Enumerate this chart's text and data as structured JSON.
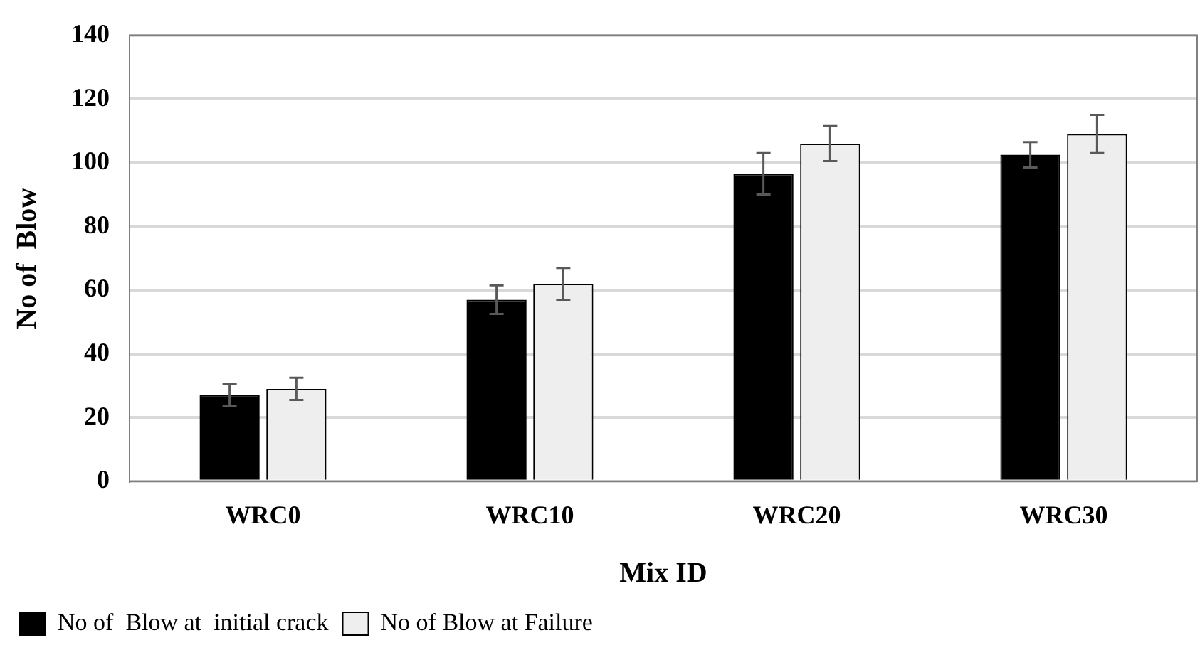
{
  "chart_data": {
    "type": "bar",
    "xlabel": "Mix ID",
    "ylabel": "No of  Blow",
    "categories": [
      "WRC0",
      "WRC10",
      "WRC20",
      "WRC30"
    ],
    "series": [
      {
        "name": "No of  Blow at  initial crack",
        "color": "#000000",
        "values": [
          27,
          57,
          96.5,
          102.5
        ],
        "errors": [
          3.5,
          4.5,
          6.5,
          4
        ]
      },
      {
        "name": "No of Blow at Failure",
        "color": "#eeeeee",
        "values": [
          29,
          62,
          106,
          109
        ],
        "errors": [
          3.5,
          5,
          5.5,
          6
        ]
      }
    ],
    "ylim": [
      0,
      140
    ],
    "yticks": [
      0,
      20,
      40,
      60,
      80,
      100,
      120,
      140
    ],
    "grid": "y",
    "legend": "bottom left"
  }
}
